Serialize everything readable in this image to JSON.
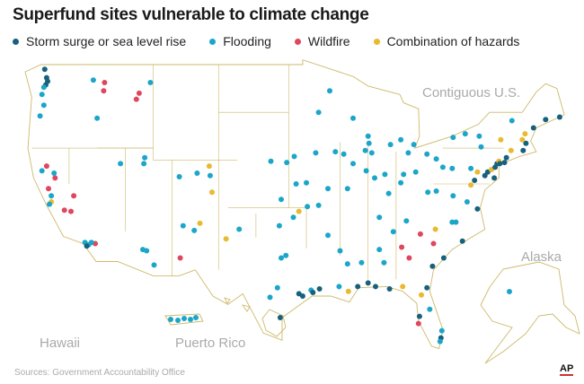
{
  "title": "Superfund sites vulnerable to climate change",
  "legend": [
    {
      "key": "s",
      "label": "Storm surge or sea level rise",
      "color": "#17617d"
    },
    {
      "key": "f",
      "label": "Flooding",
      "color": "#1ba6c9"
    },
    {
      "key": "w",
      "label": "Wildfire",
      "color": "#e0465e"
    },
    {
      "key": "c",
      "label": "Combination of hazards",
      "color": "#e9b931"
    }
  ],
  "map_labels": {
    "contiguous": "Contiguous U.S.",
    "alaska": "Alaska",
    "hawaii": "Hawaii",
    "puerto_rico": "Puerto Rico"
  },
  "source": "Sources: Government Accountability Office",
  "credit": "AP",
  "sites": [
    [
      -122.6,
      48.6,
      "s"
    ],
    [
      -122.4,
      47.9,
      "s"
    ],
    [
      -122.5,
      47.3,
      "s"
    ],
    [
      -122.3,
      47.6,
      "s"
    ],
    [
      -122.7,
      47.1,
      "f"
    ],
    [
      -122.7,
      45.6,
      "f"
    ],
    [
      -123.1,
      44.7,
      "f"
    ],
    [
      -122.9,
      46.5,
      "f"
    ],
    [
      -117.4,
      47.7,
      "f"
    ],
    [
      -116.2,
      47.5,
      "w"
    ],
    [
      -116.3,
      46.8,
      "w"
    ],
    [
      -112.8,
      46.1,
      "w"
    ],
    [
      -112.5,
      46.6,
      "w"
    ],
    [
      -111.3,
      47.5,
      "f"
    ],
    [
      -117.0,
      44.5,
      "f"
    ],
    [
      -122.4,
      40.5,
      "w"
    ],
    [
      -121.5,
      39.5,
      "w"
    ],
    [
      -122.2,
      38.6,
      "w"
    ],
    [
      -121.9,
      37.5,
      "c"
    ],
    [
      -122.1,
      37.3,
      "f"
    ],
    [
      -120.5,
      36.8,
      "w"
    ],
    [
      -119.8,
      36.7,
      "w"
    ],
    [
      -121.6,
      39.9,
      "f"
    ],
    [
      -119.5,
      38.0,
      "w"
    ],
    [
      -118.3,
      34.1,
      "f"
    ],
    [
      -117.9,
      33.9,
      "f"
    ],
    [
      -117.2,
      34.0,
      "w"
    ],
    [
      -117.6,
      34.1,
      "f"
    ],
    [
      -118.1,
      33.8,
      "s"
    ],
    [
      -121.9,
      38.0,
      "f"
    ],
    [
      -122.9,
      40.1,
      "f"
    ],
    [
      -114.5,
      40.7,
      "f"
    ],
    [
      -112.0,
      40.7,
      "f"
    ],
    [
      -111.9,
      41.2,
      "f"
    ],
    [
      -108.2,
      39.6,
      "f"
    ],
    [
      -106.3,
      39.9,
      "f"
    ],
    [
      -104.9,
      39.7,
      "f"
    ],
    [
      -105.0,
      40.5,
      "c"
    ],
    [
      -104.7,
      38.3,
      "c"
    ],
    [
      -106.6,
      35.1,
      "f"
    ],
    [
      -106.0,
      35.7,
      "c"
    ],
    [
      -107.8,
      35.5,
      "f"
    ],
    [
      -111.7,
      33.4,
      "f"
    ],
    [
      -112.1,
      33.5,
      "f"
    ],
    [
      -110.9,
      32.2,
      "f"
    ],
    [
      -108.1,
      32.8,
      "w"
    ],
    [
      -103.2,
      34.4,
      "c"
    ],
    [
      -101.8,
      35.2,
      "f"
    ],
    [
      -97.3,
      32.8,
      "f"
    ],
    [
      -96.8,
      33.0,
      "f"
    ],
    [
      -97.7,
      30.3,
      "f"
    ],
    [
      -98.5,
      29.5,
      "f"
    ],
    [
      -95.4,
      29.8,
      "s"
    ],
    [
      -95.0,
      29.6,
      "s"
    ],
    [
      -94.1,
      30.1,
      "f"
    ],
    [
      -97.4,
      27.8,
      "s"
    ],
    [
      -93.9,
      29.9,
      "s"
    ],
    [
      -96.7,
      40.8,
      "f"
    ],
    [
      -95.9,
      41.3,
      "f"
    ],
    [
      -98.4,
      40.9,
      "f"
    ],
    [
      -97.3,
      37.7,
      "f"
    ],
    [
      -95.7,
      39.0,
      "f"
    ],
    [
      -94.6,
      39.1,
      "f"
    ],
    [
      -96.0,
      36.2,
      "f"
    ],
    [
      -95.4,
      36.7,
      "c"
    ],
    [
      -97.5,
      35.5,
      "f"
    ],
    [
      -93.3,
      45.0,
      "f"
    ],
    [
      -92.1,
      46.8,
      "f"
    ],
    [
      -93.6,
      41.6,
      "f"
    ],
    [
      -91.5,
      41.7,
      "f"
    ],
    [
      -90.6,
      41.5,
      "f"
    ],
    [
      -90.2,
      38.6,
      "f"
    ],
    [
      -92.3,
      38.6,
      "f"
    ],
    [
      -93.3,
      37.2,
      "f"
    ],
    [
      -94.5,
      37.1,
      "f"
    ],
    [
      -92.3,
      34.7,
      "f"
    ],
    [
      -91.0,
      33.4,
      "f"
    ],
    [
      -90.2,
      32.3,
      "f"
    ],
    [
      -88.7,
      32.4,
      "f"
    ],
    [
      -89.1,
      30.4,
      "s"
    ],
    [
      -88.0,
      30.7,
      "s"
    ],
    [
      -90.1,
      30.0,
      "c"
    ],
    [
      -91.1,
      30.4,
      "f"
    ],
    [
      -93.2,
      30.2,
      "s"
    ],
    [
      -89.6,
      44.5,
      "f"
    ],
    [
      -88.0,
      43.0,
      "f"
    ],
    [
      -87.9,
      42.4,
      "f"
    ],
    [
      -88.3,
      41.8,
      "f"
    ],
    [
      -87.6,
      41.6,
      "f"
    ],
    [
      -89.6,
      40.7,
      "f"
    ],
    [
      -88.2,
      40.1,
      "f"
    ],
    [
      -87.3,
      39.5,
      "f"
    ],
    [
      -86.2,
      39.8,
      "f"
    ],
    [
      -85.6,
      42.3,
      "f"
    ],
    [
      -84.5,
      42.7,
      "f"
    ],
    [
      -83.1,
      42.3,
      "f"
    ],
    [
      -83.7,
      41.6,
      "f"
    ],
    [
      -84.2,
      39.8,
      "f"
    ],
    [
      -82.9,
      40.0,
      "f"
    ],
    [
      -81.7,
      41.5,
      "f"
    ],
    [
      -80.7,
      41.1,
      "f"
    ],
    [
      -84.5,
      39.1,
      "f"
    ],
    [
      -85.8,
      38.2,
      "f"
    ],
    [
      -86.8,
      36.2,
      "f"
    ],
    [
      -85.3,
      35.0,
      "f"
    ],
    [
      -83.9,
      35.9,
      "f"
    ],
    [
      -86.8,
      33.5,
      "f"
    ],
    [
      -86.3,
      32.4,
      "f"
    ],
    [
      -84.4,
      33.7,
      "w"
    ],
    [
      -83.6,
      32.8,
      "w"
    ],
    [
      -81.0,
      34.0,
      "w"
    ],
    [
      -82.4,
      34.8,
      "w"
    ],
    [
      -80.8,
      35.2,
      "c"
    ],
    [
      -79.0,
      35.8,
      "f"
    ],
    [
      -78.6,
      35.8,
      "f"
    ],
    [
      -77.9,
      34.2,
      "s"
    ],
    [
      -79.9,
      32.8,
      "s"
    ],
    [
      -81.1,
      32.1,
      "s"
    ],
    [
      -81.7,
      30.3,
      "s"
    ],
    [
      -82.3,
      29.7,
      "c"
    ],
    [
      -84.3,
      30.4,
      "c"
    ],
    [
      -85.7,
      30.2,
      "s"
    ],
    [
      -87.2,
      30.4,
      "s"
    ],
    [
      -82.5,
      27.9,
      "s"
    ],
    [
      -82.6,
      27.3,
      "w"
    ],
    [
      -80.2,
      26.1,
      "s"
    ],
    [
      -80.3,
      25.8,
      "f"
    ],
    [
      -80.1,
      26.7,
      "f"
    ],
    [
      -81.4,
      28.5,
      "f"
    ],
    [
      -80.0,
      40.4,
      "f"
    ],
    [
      -79.0,
      40.3,
      "f"
    ],
    [
      -77.0,
      40.3,
      "f"
    ],
    [
      -76.3,
      40.0,
      "c"
    ],
    [
      -75.2,
      40.0,
      "s"
    ],
    [
      -74.8,
      40.2,
      "c"
    ],
    [
      -74.2,
      40.7,
      "s"
    ],
    [
      -74.0,
      40.9,
      "c"
    ],
    [
      -74.4,
      40.4,
      "s"
    ],
    [
      -73.9,
      40.7,
      "s"
    ],
    [
      -73.4,
      40.8,
      "s"
    ],
    [
      -74.5,
      39.5,
      "s"
    ],
    [
      -75.5,
      39.7,
      "s"
    ],
    [
      -76.6,
      39.3,
      "s"
    ],
    [
      -77.0,
      38.9,
      "c"
    ],
    [
      -76.3,
      36.9,
      "s"
    ],
    [
      -77.4,
      37.5,
      "f"
    ],
    [
      -78.9,
      38.0,
      "f"
    ],
    [
      -75.9,
      42.1,
      "f"
    ],
    [
      -76.1,
      43.0,
      "f"
    ],
    [
      -77.6,
      43.2,
      "f"
    ],
    [
      -78.9,
      42.9,
      "f"
    ],
    [
      -73.8,
      42.7,
      "c"
    ],
    [
      -73.2,
      41.2,
      "s"
    ],
    [
      -72.7,
      41.8,
      "c"
    ],
    [
      -71.4,
      41.8,
      "s"
    ],
    [
      -71.1,
      42.4,
      "s"
    ],
    [
      -71.5,
      42.7,
      "c"
    ],
    [
      -70.3,
      43.7,
      "s"
    ],
    [
      -69.0,
      44.4,
      "s"
    ],
    [
      -72.6,
      44.3,
      "f"
    ],
    [
      -71.2,
      43.2,
      "c"
    ],
    [
      -67.5,
      44.6,
      "s"
    ],
    [
      -80.7,
      38.4,
      "f"
    ],
    [
      -81.6,
      38.3,
      "f"
    ]
  ]
}
